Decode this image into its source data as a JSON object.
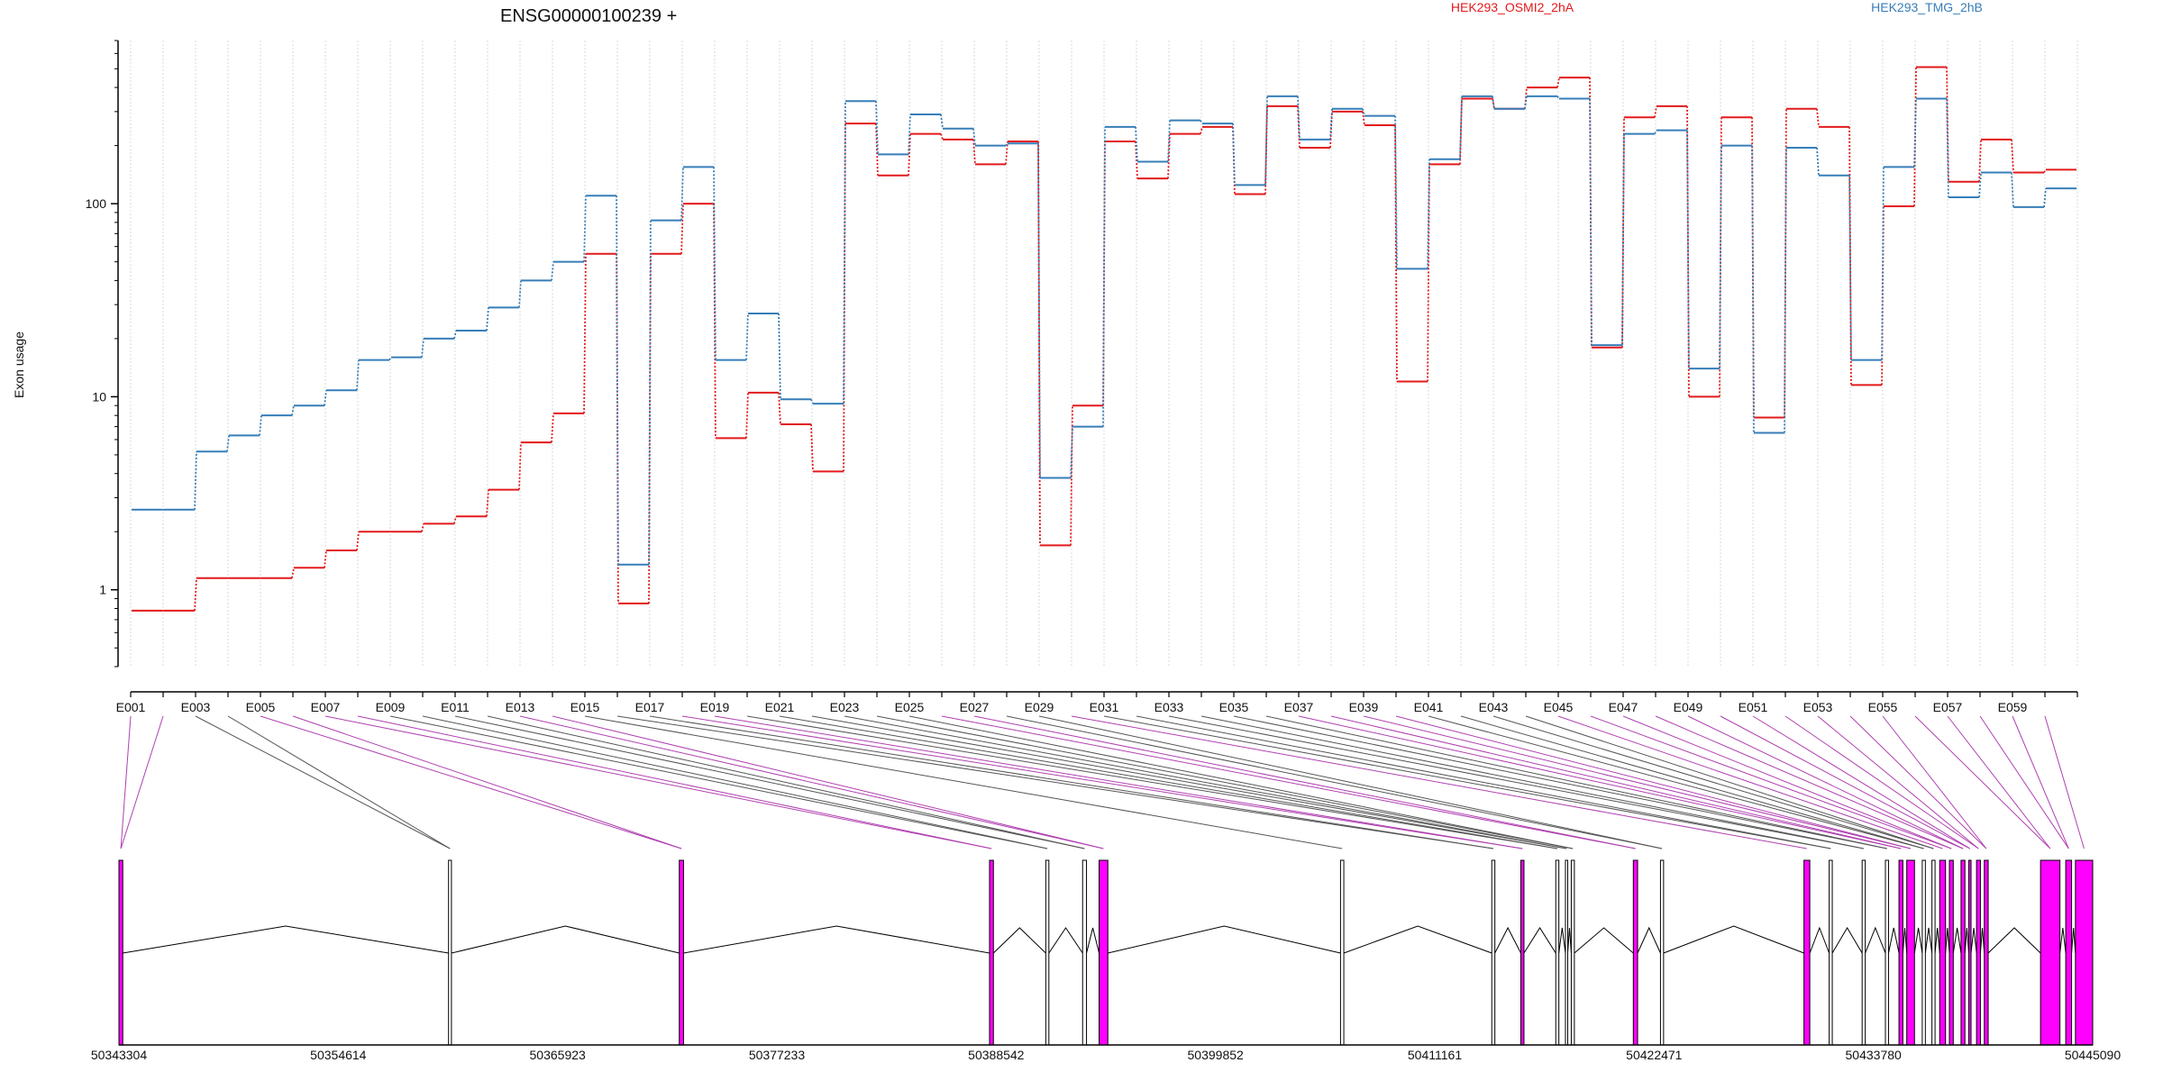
{
  "chart_data": {
    "type": "line",
    "title": "ENSG00000100239 +",
    "ylabel": "Exon usage",
    "xlabel": "",
    "y_scale": "log",
    "ylim": [
      0.4,
      700
    ],
    "y_ticks": [
      1,
      10,
      100
    ],
    "y_tick_labels": [
      "1",
      "10",
      "100"
    ],
    "grid": "vertical",
    "legend_position": "top",
    "colors": {
      "HEK293_OSMI2_2hA": "#e31a1c",
      "HEK293_TMG_2hB": "#377eb8",
      "exon_highlight": "#ff00ff",
      "intron": "#000000"
    },
    "exons": [
      "E001",
      "E002",
      "E003",
      "E004",
      "E005",
      "E006",
      "E007",
      "E008",
      "E009",
      "E010",
      "E011",
      "E012",
      "E013",
      "E014",
      "E015",
      "E016",
      "E017",
      "E018",
      "E019",
      "E020",
      "E021",
      "E022",
      "E023",
      "E024",
      "E025",
      "E026",
      "E027",
      "E028",
      "E029",
      "E030",
      "E031",
      "E032",
      "E033",
      "E034",
      "E035",
      "E036",
      "E037",
      "E038",
      "E039",
      "E040",
      "E041",
      "E042",
      "E043",
      "E044",
      "E045",
      "E046",
      "E047",
      "E048",
      "E049",
      "E050",
      "E051",
      "E052",
      "E053",
      "E054",
      "E055",
      "E056",
      "E057",
      "E058",
      "E059",
      "E060"
    ],
    "exon_tick_labels": [
      "E001",
      "E003",
      "E005",
      "E007",
      "E009",
      "E011",
      "E013",
      "E015",
      "E017",
      "E019",
      "E021",
      "E023",
      "E025",
      "E027",
      "E029",
      "E031",
      "E033",
      "E035",
      "E037",
      "E039",
      "E041",
      "E043",
      "E045",
      "E047",
      "E049",
      "E051",
      "E053",
      "E055",
      "E057",
      "E059"
    ],
    "series": [
      {
        "name": "HEK293_OSMI2_2hA",
        "values": [
          0.78,
          0.78,
          1.15,
          1.15,
          1.15,
          1.3,
          1.6,
          2.0,
          2.0,
          2.2,
          2.4,
          3.3,
          5.8,
          8.2,
          55,
          0.85,
          55,
          100,
          6.1,
          10.5,
          7.2,
          4.1,
          260,
          140,
          230,
          215,
          160,
          210,
          1.7,
          9.0,
          210,
          135,
          230,
          250,
          112,
          320,
          195,
          300,
          255,
          12,
          160,
          350,
          310,
          400,
          450,
          18,
          280,
          320,
          10,
          280,
          7.8,
          310,
          250,
          11.5,
          97,
          510,
          130,
          215,
          145,
          150
        ]
      },
      {
        "name": "HEK293_TMG_2hB",
        "values": [
          2.6,
          2.6,
          5.2,
          6.3,
          8.0,
          9.0,
          10.8,
          15.5,
          16,
          20,
          22,
          29,
          40,
          50,
          110,
          1.35,
          82,
          155,
          15.5,
          27,
          9.7,
          9.2,
          340,
          180,
          290,
          245,
          200,
          205,
          3.8,
          7.0,
          250,
          165,
          270,
          260,
          125,
          360,
          215,
          310,
          285,
          46,
          170,
          360,
          310,
          360,
          350,
          18.5,
          230,
          240,
          14,
          200,
          6.5,
          195,
          140,
          15.5,
          155,
          350,
          108,
          145,
          96,
          120
        ]
      }
    ],
    "genomic_ticks": [
      "50343304",
      "50354614",
      "50365923",
      "50377233",
      "50388542",
      "50399852",
      "50411161",
      "50422471",
      "50433780",
      "50445090"
    ],
    "genomic_range": [
      50343304,
      50445090
    ],
    "exon_blocks": [
      [
        50343304,
        50343500,
        1
      ],
      [
        50360300,
        50360450,
        0
      ],
      [
        50372200,
        50372420,
        1
      ],
      [
        50388200,
        50388400,
        1
      ],
      [
        50391100,
        50391260,
        0
      ],
      [
        50393000,
        50393200,
        0
      ],
      [
        50393850,
        50394300,
        1
      ],
      [
        50406300,
        50406470,
        0
      ],
      [
        50414100,
        50414260,
        0
      ],
      [
        50415600,
        50415760,
        1
      ],
      [
        50417400,
        50417560,
        0
      ],
      [
        50417900,
        50418000,
        0
      ],
      [
        50418200,
        50418360,
        0
      ],
      [
        50421400,
        50421620,
        1
      ],
      [
        50422800,
        50422960,
        0
      ],
      [
        50430200,
        50430500,
        1
      ],
      [
        50431500,
        50431660,
        0
      ],
      [
        50433200,
        50433360,
        0
      ],
      [
        50434400,
        50434560,
        0
      ],
      [
        50435100,
        50435300,
        1
      ],
      [
        50435500,
        50435900,
        1
      ],
      [
        50436300,
        50436460,
        0
      ],
      [
        50436800,
        50436960,
        0
      ],
      [
        50437200,
        50437500,
        1
      ],
      [
        50437700,
        50437900,
        1
      ],
      [
        50438300,
        50438500,
        1
      ],
      [
        50438700,
        50438800,
        1
      ],
      [
        50439100,
        50439300,
        1
      ],
      [
        50439500,
        50439700,
        1
      ],
      [
        50442400,
        50443400,
        1
      ],
      [
        50443700,
        50444000,
        1
      ],
      [
        50444200,
        50445090,
        1
      ]
    ]
  }
}
